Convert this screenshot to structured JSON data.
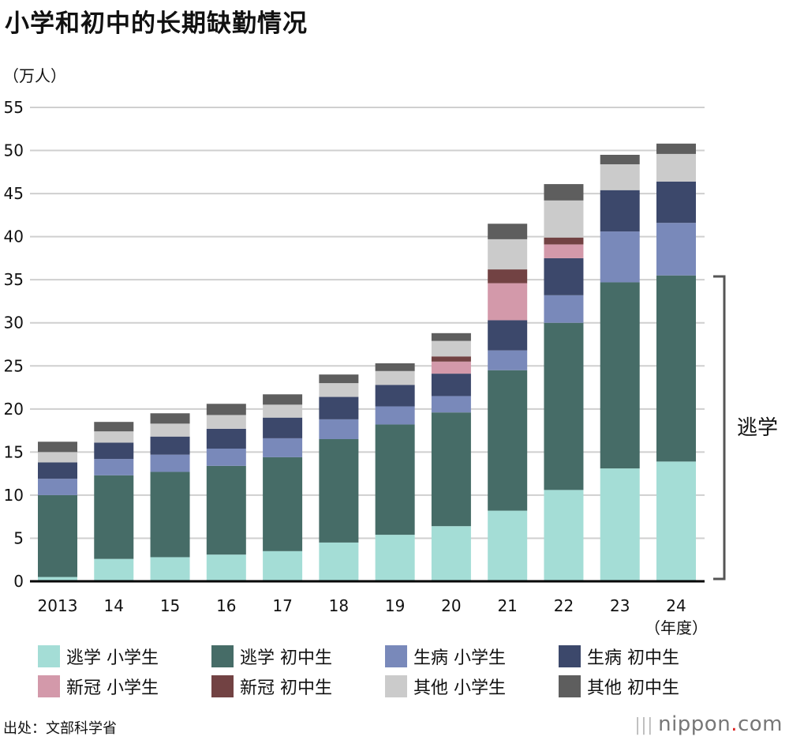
{
  "title": "小学和初中的长期缺勤情况",
  "source": "出处：文部科学省",
  "logo": {
    "name": "nippon",
    "dot": ".",
    "suffix": "com"
  },
  "chart_data": {
    "type": "bar",
    "stacked": true,
    "title": "小学和初中的长期缺勤情况",
    "ylabel": "（万人）",
    "xlabel": "（年度）",
    "ylim": [
      0,
      55
    ],
    "yticks": [
      0,
      5,
      10,
      15,
      20,
      25,
      30,
      35,
      40,
      45,
      50,
      55
    ],
    "grid": true,
    "legend_position": "bottom",
    "categories": [
      "2013",
      "14",
      "15",
      "16",
      "17",
      "18",
      "19",
      "20",
      "21",
      "22",
      "23",
      "24"
    ],
    "series": [
      {
        "name": "逃学 小学生",
        "color": "#a4ddd6",
        "values": [
          0.5,
          2.6,
          2.8,
          3.1,
          3.5,
          4.5,
          5.4,
          6.4,
          8.2,
          10.6,
          13.1,
          13.9
        ]
      },
      {
        "name": "逃学 初中生",
        "color": "#466c67",
        "values": [
          9.5,
          9.7,
          9.9,
          10.3,
          10.9,
          12.0,
          12.8,
          13.2,
          16.3,
          19.4,
          21.6,
          21.6
        ]
      },
      {
        "name": "生病 小学生",
        "color": "#7989ba",
        "values": [
          1.9,
          1.9,
          2.0,
          2.0,
          2.2,
          2.3,
          2.1,
          1.9,
          2.3,
          3.2,
          5.9,
          6.1
        ]
      },
      {
        "name": "生病 初中生",
        "color": "#3c486b",
        "values": [
          1.9,
          1.9,
          2.1,
          2.3,
          2.4,
          2.6,
          2.5,
          2.6,
          3.5,
          4.3,
          4.8,
          4.8
        ]
      },
      {
        "name": "新冠 小学生",
        "color": "#d399aa",
        "values": [
          0,
          0,
          0,
          0,
          0,
          0,
          0,
          1.4,
          4.3,
          1.6,
          0,
          0
        ]
      },
      {
        "name": "新冠 初中生",
        "color": "#724243",
        "values": [
          0,
          0,
          0,
          0,
          0,
          0,
          0,
          0.6,
          1.6,
          0.8,
          0,
          0
        ]
      },
      {
        "name": "其他 小学生",
        "color": "#cbcbcb",
        "values": [
          1.2,
          1.3,
          1.5,
          1.6,
          1.5,
          1.6,
          1.6,
          1.8,
          3.5,
          4.3,
          3.0,
          3.2
        ]
      },
      {
        "name": "其他 初中生",
        "color": "#5e5e5e",
        "values": [
          1.2,
          1.1,
          1.2,
          1.3,
          1.2,
          1.0,
          0.9,
          0.9,
          1.8,
          1.9,
          1.1,
          1.2
        ]
      }
    ],
    "annotations": [
      {
        "text": "逃学",
        "type": "bracket"
      }
    ]
  }
}
